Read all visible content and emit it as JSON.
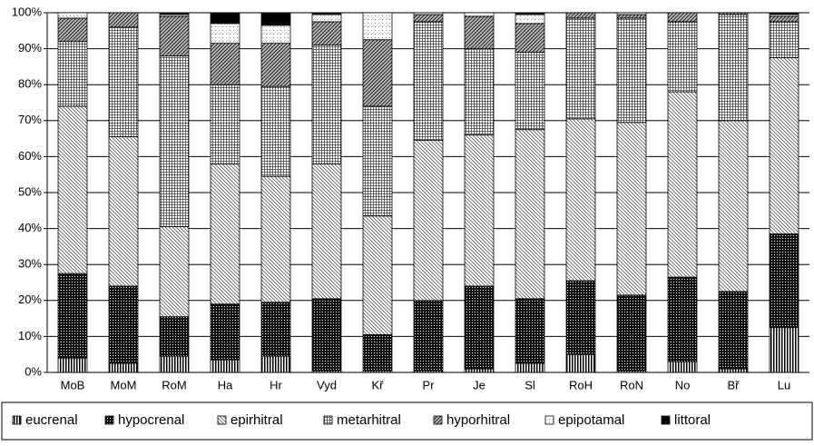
{
  "chart_data": {
    "type": "stacked-bar",
    "categories": [
      "MoB",
      "MoM",
      "RoM",
      "Ha",
      "Hr",
      "Vyd",
      "Kř",
      "Pr",
      "Je",
      "Sl",
      "RoH",
      "RoN",
      "No",
      "Bř",
      "Lu"
    ],
    "series": [
      {
        "name": "eucrenal",
        "color": "#000000",
        "pattern": "vertical",
        "values": [
          4,
          2.5,
          4.5,
          3.5,
          4.5,
          0.5,
          0.5,
          0.5,
          1,
          2.5,
          5,
          0.5,
          3,
          1,
          12.5
        ]
      },
      {
        "name": "hypocrenal",
        "color": "#000000",
        "pattern": "dense-dots",
        "values": [
          23.5,
          21.5,
          11,
          15.5,
          15,
          20,
          10,
          19.5,
          23,
          18,
          20.5,
          21,
          23.5,
          21.5,
          26
        ]
      },
      {
        "name": "epirhitral",
        "color": "#000000",
        "pattern": "diagonal",
        "values": [
          46.5,
          41.5,
          25,
          39,
          35,
          37.5,
          33,
          44.5,
          42,
          47,
          45,
          48,
          51.5,
          47.5,
          49
        ]
      },
      {
        "name": "metarhitral",
        "color": "#000000",
        "pattern": "grid",
        "values": [
          18,
          30.5,
          47.5,
          22,
          25,
          33,
          30.5,
          33,
          24,
          21.5,
          28,
          29,
          19.5,
          29.5,
          10
        ]
      },
      {
        "name": "hyporhitral",
        "color": "#000000",
        "pattern": "dense-diagonal",
        "values": [
          6.5,
          4,
          11,
          11.5,
          12,
          6.5,
          18.5,
          2,
          9,
          8,
          1.5,
          1,
          2.5,
          0.5,
          1.5
        ]
      },
      {
        "name": "epipotamal",
        "color": "#000000",
        "pattern": "sparse-dots",
        "values": [
          1.5,
          0,
          0.5,
          5.5,
          5,
          2,
          7.5,
          0.5,
          1,
          2.5,
          0,
          0.5,
          0,
          0,
          0.5
        ]
      },
      {
        "name": "littoral",
        "color": "#000000",
        "pattern": "solid",
        "values": [
          0,
          0,
          0.5,
          3,
          3.5,
          0.5,
          0,
          0,
          0,
          0.5,
          0,
          0,
          0,
          0,
          0.5
        ]
      }
    ],
    "ylim": [
      0,
      100
    ],
    "yticks": [
      {
        "value": 0,
        "label": "0%"
      },
      {
        "value": 10,
        "label": "10%"
      },
      {
        "value": 20,
        "label": "20%"
      },
      {
        "value": 30,
        "label": "30%"
      },
      {
        "value": 40,
        "label": "40%"
      },
      {
        "value": 50,
        "label": "50%"
      },
      {
        "value": 60,
        "label": "60%"
      },
      {
        "value": 70,
        "label": "70%"
      },
      {
        "value": 80,
        "label": "80%"
      },
      {
        "value": 90,
        "label": "90%"
      },
      {
        "value": 100,
        "label": "100%"
      }
    ],
    "grid": true,
    "legend": "bottom"
  }
}
